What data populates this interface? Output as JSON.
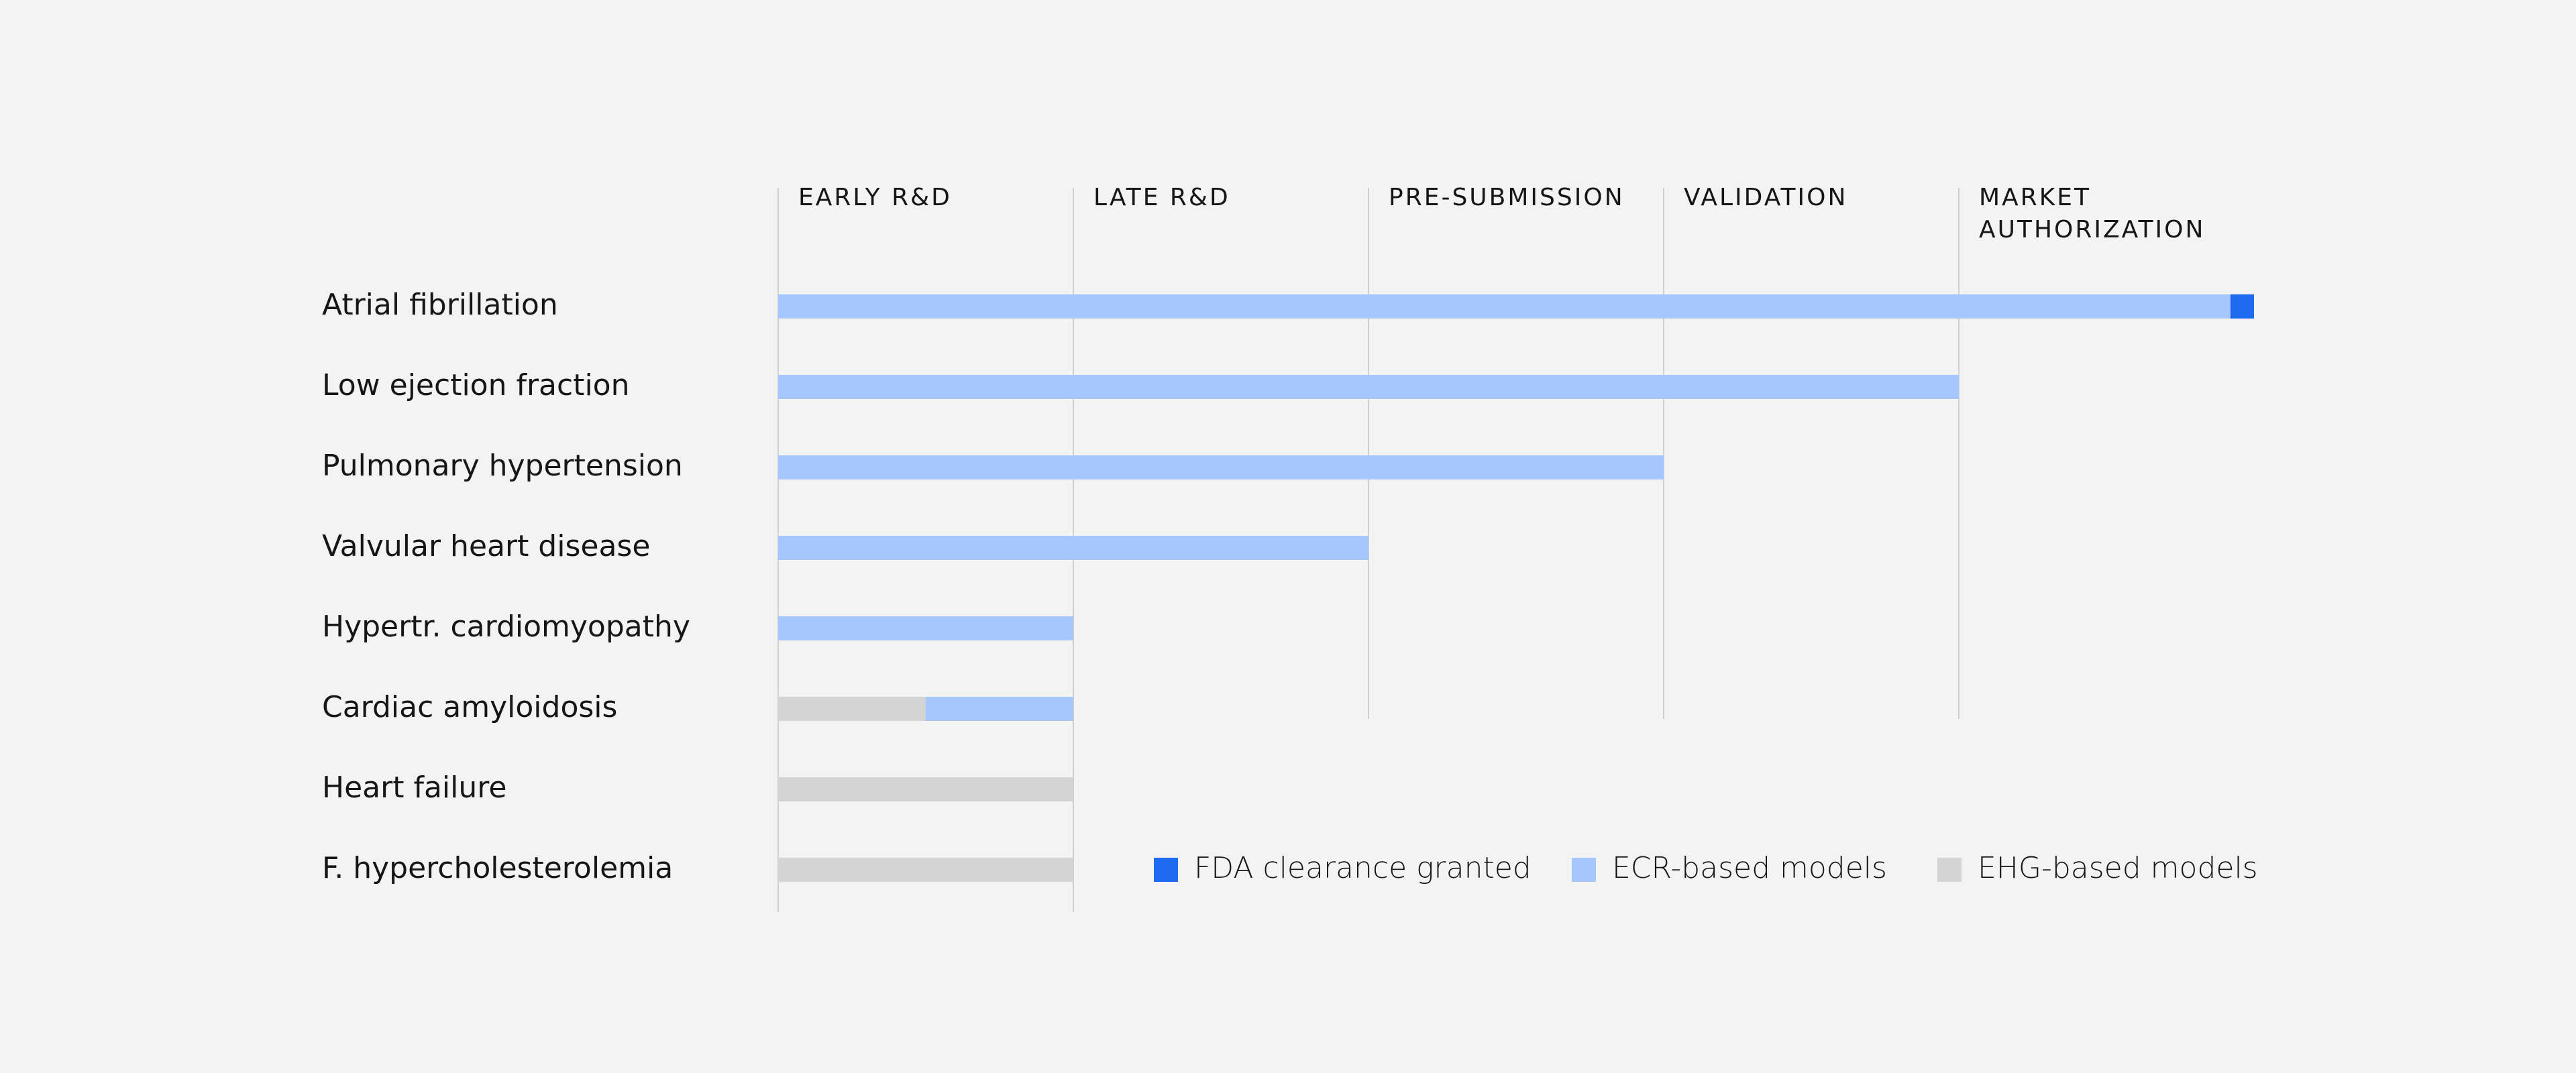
{
  "chart_data": {
    "type": "bar",
    "orientation": "horizontal",
    "stacked": true,
    "stages": [
      "EARLY R&D",
      "LATE R&D",
      "PRE-SUBMISSION",
      "VALIDATION",
      "MARKET AUTHORIZATION"
    ],
    "categories": [
      "Atrial fibrillation",
      "Low ejection fraction",
      "Pulmonary hypertension",
      "Valvular heart disease",
      "Hypertr. cardiomyopathy",
      "Cardiac amyloidosis",
      "Heart failure",
      "F. hypercholesterolemia"
    ],
    "series": [
      {
        "name": "EHG-based models",
        "color": "#d4d4d4",
        "values": [
          0,
          0,
          0,
          0,
          0,
          0.5,
          1,
          1
        ]
      },
      {
        "name": "ECR-based models",
        "color": "#a6c8ff",
        "values": [
          4.92,
          4,
          3,
          2,
          1,
          0.5,
          0,
          0
        ]
      },
      {
        "name": "FDA clearance granted",
        "color": "#1f6bf0",
        "values": [
          0.08,
          0,
          0,
          0,
          0,
          0,
          0,
          0
        ]
      }
    ],
    "legend": {
      "position": "bottom-right",
      "order": [
        "FDA clearance granted",
        "ECR-based models",
        "EHG-based models"
      ]
    },
    "xlim": [
      0,
      5
    ],
    "grid": true,
    "gridline_color": "#d0d0d0"
  }
}
